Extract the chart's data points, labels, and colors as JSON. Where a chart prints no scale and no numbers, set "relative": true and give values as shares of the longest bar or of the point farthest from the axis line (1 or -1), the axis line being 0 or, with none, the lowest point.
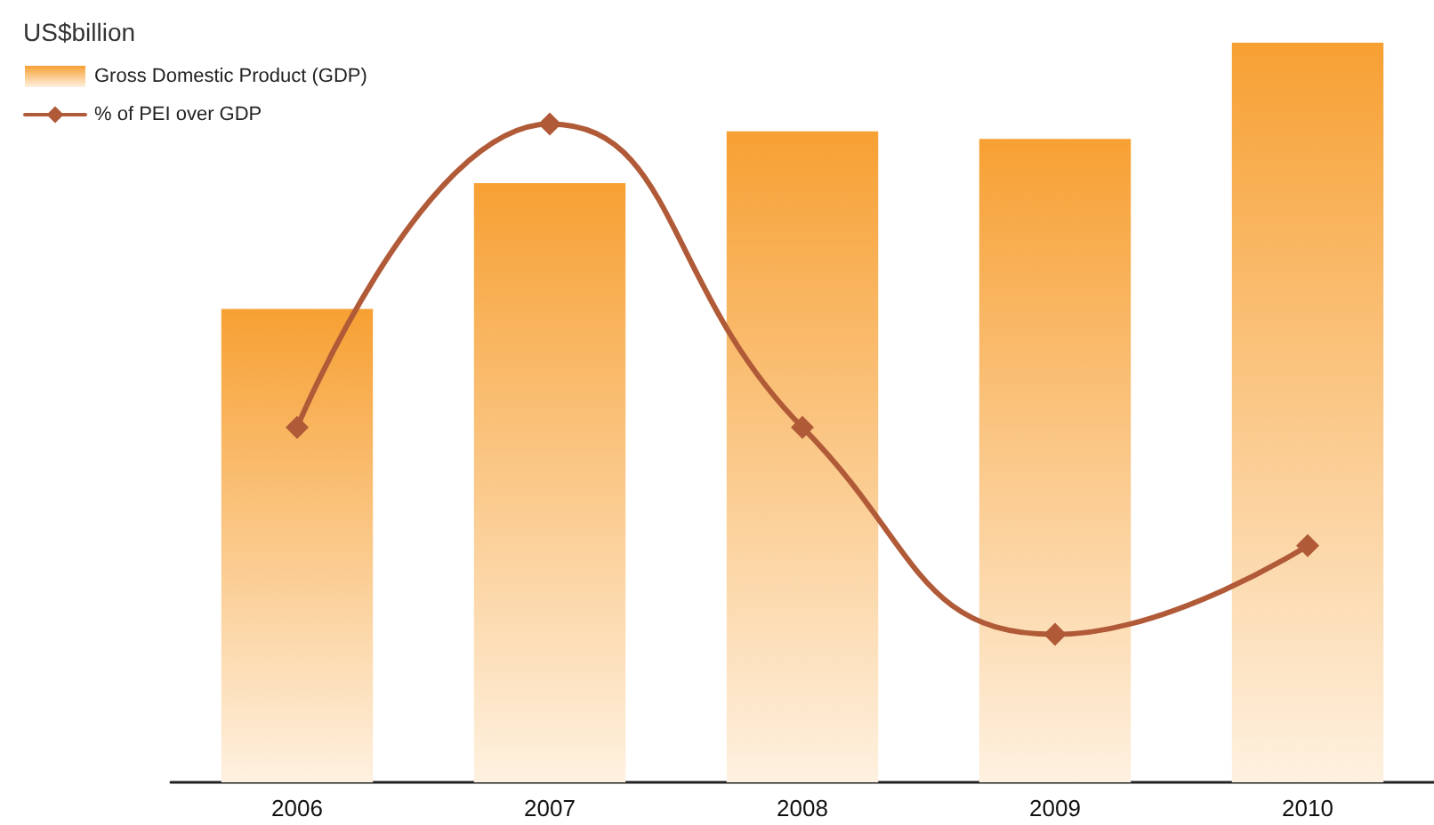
{
  "chart_data": {
    "type": "bar",
    "ylabel": "US$billion",
    "relative": true,
    "legend": "top left",
    "marker": "diamond",
    "line_style": "solid",
    "categories": [
      "2006",
      "2007",
      "2008",
      "2009",
      "2010"
    ],
    "series": [
      {
        "name": "Gross Domestic Product (GDP)",
        "color": "#f7a033",
        "values": [
          0.64,
          0.81,
          0.88,
          0.87,
          1
        ]
      },
      {
        "name": "% of PEI over GDP",
        "type": "line",
        "color": "#b05a38",
        "values": [
          0.48,
          0.89,
          0.48,
          0.2,
          0.32
        ]
      }
    ]
  }
}
